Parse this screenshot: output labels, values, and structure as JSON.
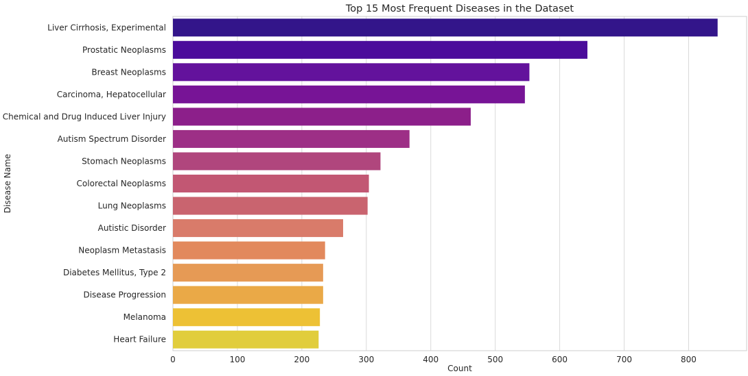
{
  "chart_data": {
    "type": "bar",
    "orientation": "horizontal",
    "title": "Top 15 Most Frequent Diseases in the Dataset",
    "xlabel": "Count",
    "ylabel": "Disease Name",
    "xlim": [
      0,
      890
    ],
    "xticks": [
      0,
      100,
      200,
      300,
      400,
      500,
      600,
      700,
      800
    ],
    "grid": true,
    "legend": "none",
    "categories": [
      "Liver Cirrhosis, Experimental",
      "Prostatic Neoplasms",
      "Breast Neoplasms",
      "Carcinoma, Hepatocellular",
      "Chemical and Drug Induced Liver Injury",
      "Autism Spectrum Disorder",
      "Stomach Neoplasms",
      "Colorectal Neoplasms",
      "Lung Neoplasms",
      "Autistic Disorder",
      "Neoplasm Metastasis",
      "Diabetes Mellitus, Type 2",
      "Disease Progression",
      "Melanoma",
      "Heart Failure"
    ],
    "values": [
      845,
      643,
      553,
      546,
      462,
      367,
      322,
      304,
      302,
      264,
      236,
      233,
      233,
      228,
      226
    ],
    "colors": [
      "#33158a",
      "#4b0c9b",
      "#63129c",
      "#771496",
      "#8c1f8a",
      "#9d2f86",
      "#b0467d",
      "#c25773",
      "#c9646f",
      "#d97b6a",
      "#e2895d",
      "#e69a55",
      "#eaa947",
      "#edc135",
      "#e1cd3c"
    ]
  }
}
